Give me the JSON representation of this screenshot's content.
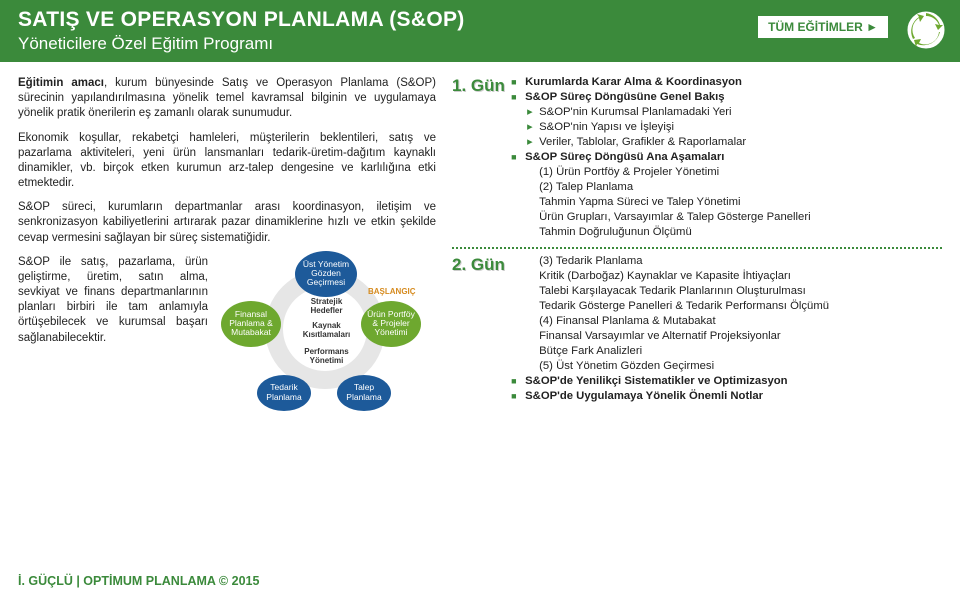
{
  "header": {
    "title": "SATIŞ VE OPERASYON PLANLAMA (S&OP)",
    "subtitle": "Yöneticilere Özel Eğitim Programı",
    "all_trainings": "TÜM EĞİTİMLER ►"
  },
  "left": {
    "p1a": "Eğitimin amacı",
    "p1b": ", kurum bünyesinde Satış ve Operasyon Planlama (S&OP) sürecinin yapılandırılmasına yönelik temel kavramsal bilginin ve uygulamaya yönelik pratik önerilerin eş zamanlı olarak sunumudur.",
    "p2": "Ekonomik koşullar, rekabetçi hamleleri, müşterilerin beklentileri, satış ve pazarlama aktiviteleri, yeni ürün lansmanları tedarik-üretim-dağıtım kaynaklı dinamikler, vb. birçok etken kurumun arz-talep dengesine ve karlılığına etki etmektedir.",
    "p3": "S&OP süreci, kurumların departmanlar arası koordinasyon, iletişim ve senkronizasyon kabiliyetlerini artırarak pazar dinamiklerine hızlı ve etkin şekilde cevap vermesini sağlayan bir süreç sistematiğidir.",
    "p4": "S&OP ile satış, pazarlama, ürün geliştirme, üretim, satın alma, sevkiyat ve finans departmanlarının planları birbiri ile tam anlamıyla örtüşebilecek ve kurumsal başarı sağlanabilecektir."
  },
  "figure": {
    "start": "BAŞLANGIÇ",
    "ust": "Üst Yönetim Gözden Geçirmesi",
    "urun": "Ürün Portföy & Projeler Yönetimi",
    "talep": "Talep Planlama",
    "tedarik": "Tedarik Planlama",
    "fin": "Finansal Planlama & Mutabakat",
    "c1": "Stratejik Hedefler",
    "c2": "Kaynak Kısıtlamaları",
    "c3": "Performans Yönetimi"
  },
  "footer": "İ. GÜÇLÜ | OPTİMUM PLANLAMA © 2015",
  "day1": {
    "label": "1. Gün",
    "items": [
      {
        "lvl": 0,
        "t": "Kurumlarda Karar Alma & Koordinasyon"
      },
      {
        "lvl": 0,
        "t": "S&OP Süreç Döngüsüne Genel Bakış"
      },
      {
        "lvl": 1,
        "t": "S&OP'nin Kurumsal Planlamadaki Yeri"
      },
      {
        "lvl": 1,
        "t": "S&OP'nin Yapısı ve İşleyişi"
      },
      {
        "lvl": 1,
        "t": "Veriler, Tablolar, Grafikler & Raporlamalar"
      },
      {
        "lvl": 0,
        "t": "S&OP Süreç Döngüsü Ana Aşamaları"
      },
      {
        "lvl": 2,
        "t": "(1) Ürün Portföy & Projeler Yönetimi"
      },
      {
        "lvl": 2,
        "t": "(2) Talep Planlama"
      },
      {
        "lvl": 2,
        "t": "Tahmin Yapma Süreci ve Talep Yönetimi"
      },
      {
        "lvl": 2,
        "t": "Ürün Grupları, Varsayımlar & Talep Gösterge Panelleri"
      },
      {
        "lvl": 2,
        "t": "Tahmin Doğruluğunun Ölçümü"
      }
    ]
  },
  "day2": {
    "label": "2. Gün",
    "items": [
      {
        "lvl": 2,
        "t": "(3) Tedarik Planlama"
      },
      {
        "lvl": 2,
        "t": "Kritik (Darboğaz) Kaynaklar ve Kapasite İhtiyaçları"
      },
      {
        "lvl": 2,
        "t": "Talebi Karşılayacak Tedarik Planlarının Oluşturulması"
      },
      {
        "lvl": 2,
        "t": "Tedarik Gösterge Panelleri & Tedarik Performansı Ölçümü"
      },
      {
        "lvl": 2,
        "t": "(4) Finansal Planlama & Mutabakat"
      },
      {
        "lvl": 2,
        "t": "Finansal Varsayımlar ve Alternatif Projeksiyonlar"
      },
      {
        "lvl": 2,
        "t": "Bütçe Fark Analizleri"
      },
      {
        "lvl": 2,
        "t": "(5) Üst Yönetim Gözden Geçirmesi"
      },
      {
        "lvl": 0,
        "t": "S&OP'de Yenilikçi Sistematikler ve Optimizasyon"
      },
      {
        "lvl": 0,
        "t": "S&OP'de Uygulamaya Yönelik Önemli Notlar"
      }
    ]
  },
  "colors": {
    "brand": "#3b8a3b",
    "blue": "#1d5a9a",
    "green": "#6ea82f",
    "orange": "#d68b1f"
  }
}
